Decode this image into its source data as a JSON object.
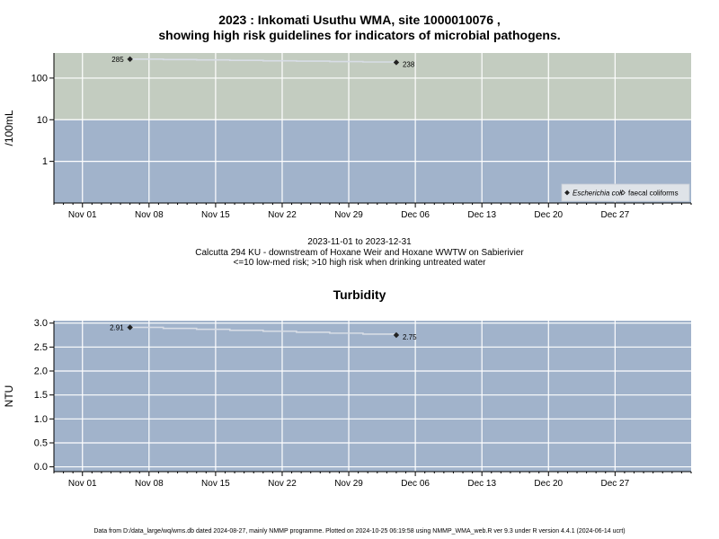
{
  "title_line1": "2023 : Inkomati Usuthu WMA, site 1000010076 ,",
  "title_line2": "showing high risk guidelines for indicators of microbial pathogens.",
  "caption": {
    "date_range": "2023-11-01 to 2023-12-31",
    "site_desc": "Calcutta 294 KU - downstream of Hoxane Weir and Hoxane WWTW on Sabierivier",
    "risk_note": "<=10 low-med risk; >10 high risk when drinking untreated water"
  },
  "footer": "Data from D:/data_large/wq/wms.db dated 2024-08-27, mainly NMMP programme. Plotted on 2024-10-25 06:19:58 using NMMP_WMA_web.R ver 9.3 under R version 4.4.1 (2024-06-14 ucrt)",
  "colors": {
    "high_risk": "#c3ccc0",
    "low_risk": "#a1b3cb",
    "grid": "#ffffff",
    "line": "#d8dde6",
    "point": "#222222"
  },
  "chart_data": [
    {
      "type": "line",
      "title": "",
      "ylabel": "/100mL",
      "xlabel": "",
      "y_scale": "log",
      "ylim": [
        0.1,
        400
      ],
      "x_range": [
        "2023-10-29",
        "2024-01-04"
      ],
      "y_ticks": [
        1,
        10,
        100
      ],
      "y_tick_labels": [
        "1",
        "10",
        "100"
      ],
      "x_ticks": [
        "2023-11-01",
        "2023-11-08",
        "2023-11-15",
        "2023-11-22",
        "2023-11-29",
        "2023-12-06",
        "2023-12-13",
        "2023-12-20",
        "2023-12-27"
      ],
      "x_tick_labels": [
        "Nov 01",
        "Nov 08",
        "Nov 15",
        "Nov 22",
        "Nov 29",
        "Dec 06",
        "Dec 13",
        "Dec 20",
        "Dec 27"
      ],
      "threshold": 10,
      "grid": true,
      "legend_position": "bottom-right",
      "legend": [
        {
          "label": "Escherichia coli",
          "italic": true,
          "marker": "filled-diamond"
        },
        {
          "label": "faecal coliforms",
          "italic": false,
          "marker": "open-diamond"
        }
      ],
      "series": [
        {
          "name": "Escherichia coli",
          "x": [
            "2023-11-06",
            "2023-12-04"
          ],
          "y": [
            285,
            238
          ],
          "labels": [
            "285",
            "238"
          ]
        }
      ]
    },
    {
      "type": "line",
      "title": "Turbidity",
      "ylabel": "NTU",
      "xlabel": "",
      "y_scale": "linear",
      "ylim": [
        -0.1,
        3.05
      ],
      "x_range": [
        "2023-10-29",
        "2024-01-04"
      ],
      "y_ticks": [
        0,
        0.5,
        1,
        1.5,
        2,
        2.5,
        3
      ],
      "y_tick_labels": [
        "0.0",
        "0.5",
        "1.0",
        "1.5",
        "2.0",
        "2.5",
        "3.0"
      ],
      "x_ticks": [
        "2023-11-01",
        "2023-11-08",
        "2023-11-15",
        "2023-11-22",
        "2023-11-29",
        "2023-12-06",
        "2023-12-13",
        "2023-12-20",
        "2023-12-27"
      ],
      "x_tick_labels": [
        "Nov 01",
        "Nov 08",
        "Nov 15",
        "Nov 22",
        "Nov 29",
        "Dec 06",
        "Dec 13",
        "Dec 20",
        "Dec 27"
      ],
      "grid": true,
      "series": [
        {
          "x": [
            "2023-11-06",
            "2023-12-04"
          ],
          "y": [
            2.91,
            2.75
          ],
          "labels": [
            "2.91",
            "2.75"
          ]
        }
      ]
    }
  ]
}
